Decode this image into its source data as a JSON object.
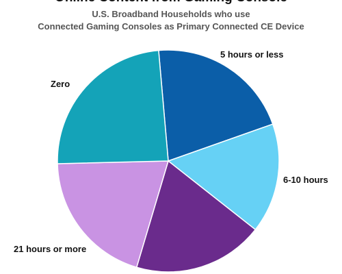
{
  "chart_data": {
    "type": "pie",
    "title": "Online Content from Gaming Console",
    "subtitle": [
      "U.S. Broadband Households who use",
      "Connected Gaming Consoles as Primary Connected CE Device"
    ],
    "slices": [
      {
        "label": "5 hours or less",
        "value": 21,
        "color": "#0b5ea8"
      },
      {
        "label": "6-10 hours",
        "value": 16,
        "color": "#66d1f5"
      },
      {
        "label": "",
        "value": 19,
        "color": "#6a2b8c"
      },
      {
        "label": "21 hours or more",
        "value": 20,
        "color": "#c993e3"
      },
      {
        "label": "Zero",
        "value": 24,
        "color": "#14a3b8"
      }
    ]
  }
}
